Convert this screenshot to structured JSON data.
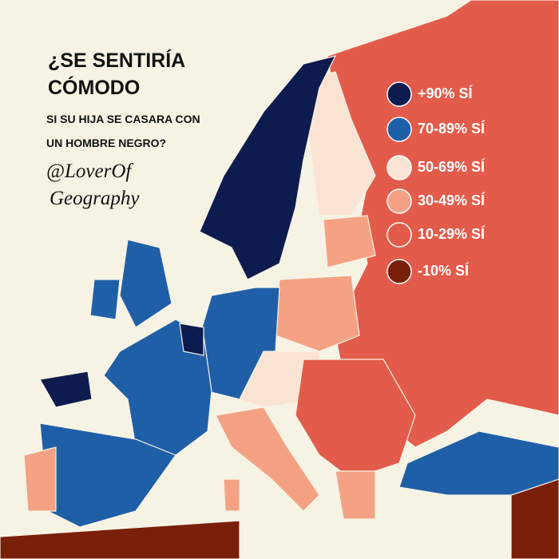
{
  "title": [
    "¿SE SENTIRÍA",
    "CÓMODO"
  ],
  "subtitle": [
    "SI SU HIJA SE CASARA CON",
    "UN HOMBRE NEGRO?"
  ],
  "credit": [
    "@LoverOf",
    "Geography"
  ],
  "legend": [
    {
      "label": "+90% SÍ",
      "color": "#0d1b4f"
    },
    {
      "label": "70-89% SÍ",
      "color": "#1f5fa8"
    },
    {
      "label": "50-69% SÍ",
      "color": "#fbe3d4"
    },
    {
      "label": "30-49% SÍ",
      "color": "#f4a283"
    },
    {
      "label": "10-29% SÍ",
      "color": "#e35b4a"
    },
    {
      "label": "-10% SÍ",
      "color": "#7a1f0a"
    }
  ]
}
